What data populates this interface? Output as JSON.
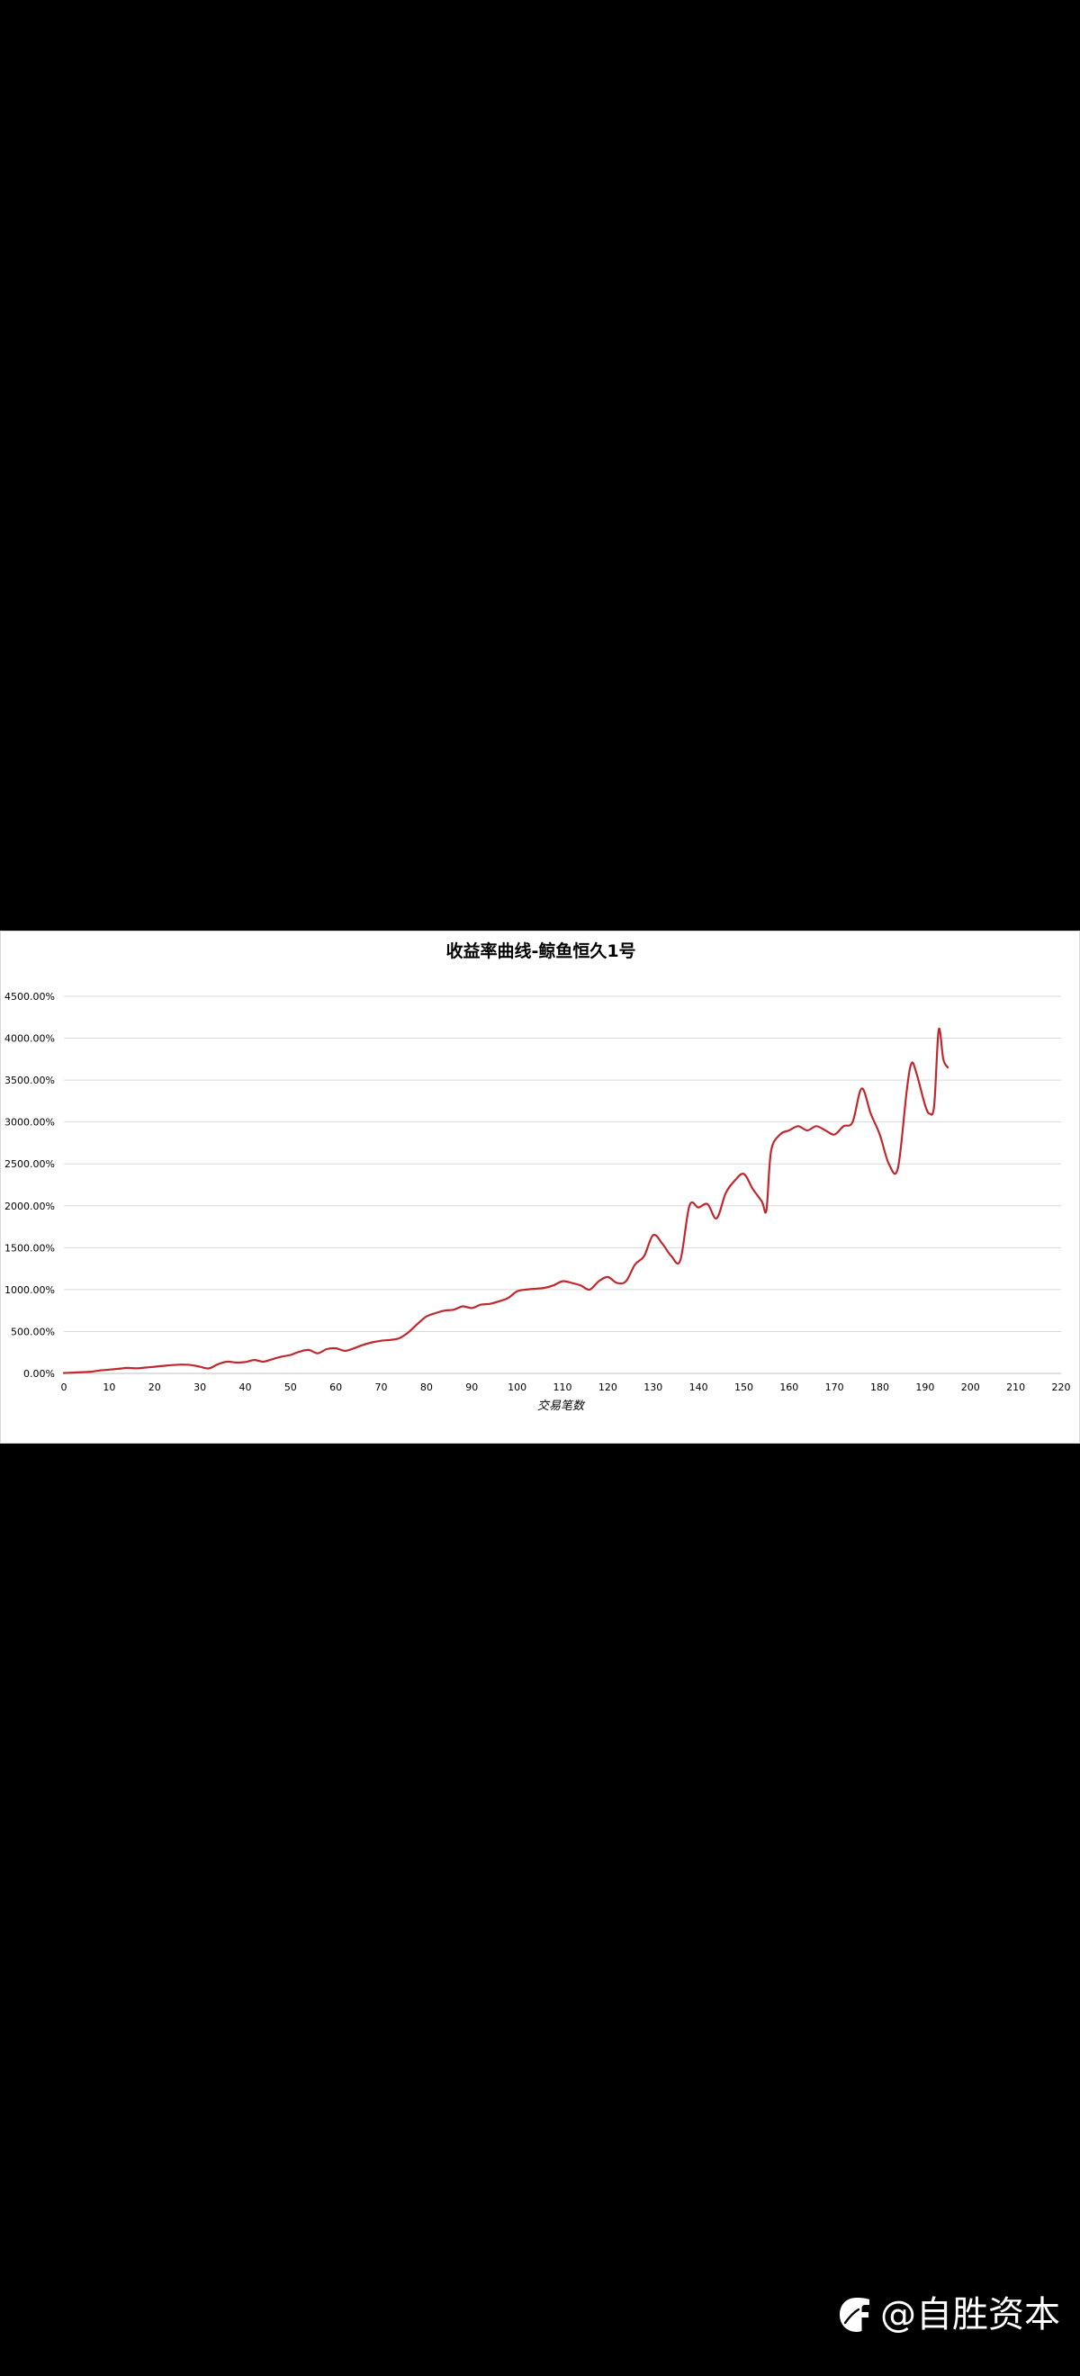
{
  "chart_data": {
    "type": "line",
    "title": "收益率曲线-鲸鱼恒久1号",
    "xlabel": "交易笔数",
    "ylabel": "",
    "xlim": [
      0,
      220
    ],
    "ylim": [
      0,
      4500
    ],
    "x_ticks": [
      0,
      10,
      20,
      30,
      40,
      50,
      60,
      70,
      80,
      90,
      100,
      110,
      120,
      130,
      140,
      150,
      160,
      170,
      180,
      190,
      200,
      210,
      220
    ],
    "y_ticks": [
      0,
      500,
      1000,
      1500,
      2000,
      2500,
      3000,
      3500,
      4000,
      4500
    ],
    "y_tick_labels": [
      "0.00%",
      "500.00%",
      "1000.00%",
      "1500.00%",
      "2000.00%",
      "2500.00%",
      "3000.00%",
      "3500.00%",
      "4000.00%",
      "4500.00%"
    ],
    "grid": true,
    "legend": "none",
    "color": "#c0282d",
    "series": [
      {
        "x": [
          0,
          2,
          4,
          6,
          8,
          10,
          12,
          14,
          16,
          18,
          20,
          22,
          24,
          26,
          28,
          30,
          32,
          34,
          36,
          38,
          40,
          42,
          44,
          46,
          48,
          50,
          52,
          54,
          56,
          58,
          60,
          62,
          64,
          66,
          68,
          70,
          72,
          74,
          76,
          78,
          80,
          82,
          84,
          86,
          88,
          90,
          92,
          94,
          96,
          98,
          100,
          102,
          104,
          106,
          108,
          110,
          112,
          114,
          116,
          118,
          120,
          122,
          124,
          126,
          128,
          130,
          132,
          134,
          136,
          138,
          140,
          142,
          144,
          146,
          148,
          150,
          152,
          154,
          155,
          156,
          158,
          160,
          162,
          164,
          166,
          168,
          170,
          172,
          174,
          176,
          178,
          180,
          182,
          184,
          186,
          187,
          188,
          190,
          191,
          192,
          193,
          194,
          195
        ],
        "values": [
          5,
          10,
          15,
          20,
          35,
          45,
          55,
          65,
          60,
          70,
          80,
          90,
          100,
          105,
          100,
          80,
          60,
          110,
          140,
          130,
          135,
          160,
          140,
          170,
          200,
          220,
          260,
          280,
          240,
          290,
          300,
          270,
          300,
          340,
          370,
          390,
          400,
          420,
          490,
          590,
          680,
          720,
          750,
          760,
          800,
          780,
          820,
          830,
          860,
          900,
          980,
          1000,
          1010,
          1020,
          1050,
          1100,
          1080,
          1050,
          1000,
          1100,
          1150,
          1080,
          1100,
          1300,
          1400,
          1650,
          1550,
          1400,
          1350,
          2000,
          1980,
          2020,
          1850,
          2150,
          2300,
          2380,
          2200,
          2050,
          1950,
          2650,
          2850,
          2900,
          2950,
          2900,
          2950,
          2900,
          2850,
          2950,
          3000,
          3400,
          3100,
          2850,
          2500,
          2450,
          3400,
          3700,
          3600,
          3200,
          3100,
          3200,
          4100,
          3750,
          3650
        ]
      }
    ]
  },
  "watermark": {
    "text": "@自胜资本",
    "icon": "feather-f-logo-icon"
  }
}
